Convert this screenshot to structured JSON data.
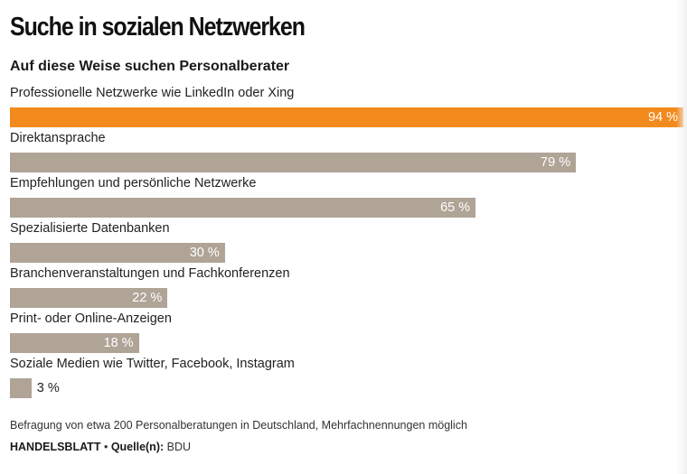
{
  "header": {
    "title": "Suche in sozialen Netzwerken",
    "subtitle": "Auf diese Weise suchen Personalberater"
  },
  "chart_data": {
    "type": "bar",
    "orientation": "horizontal",
    "title": "Suche in sozialen Netzwerken",
    "subtitle": "Auf diese Weise suchen Personalberater",
    "categories": [
      "Professionelle Netzwerke wie LinkedIn oder Xing",
      "Direktansprache",
      "Empfehlungen und persönliche Netzwerke",
      "Spezialisierte Datenbanken",
      "Branchenveranstaltungen und Fachkonferenzen",
      "Print- oder Online-Anzeigen",
      "Soziale Medien wie Twitter, Facebook, Instagram"
    ],
    "values": [
      94,
      79,
      65,
      30,
      22,
      18,
      3
    ],
    "value_labels": [
      "94 %",
      "79 %",
      "65 %",
      "30 %",
      "22 %",
      "18 %",
      "3 %"
    ],
    "unit": "%",
    "colors": {
      "highlight": "#f28a1d",
      "default": "#b0a497"
    },
    "highlight_index": 0,
    "xlim": [
      0,
      94
    ]
  },
  "footer": {
    "note": "Befragung von etwa 200 Personalberatungen in Deutschland, Mehrfachnennungen möglich",
    "publisher": "HANDELSBLATT",
    "separator": "•",
    "source_label": "Quelle(n):",
    "source_value": "BDU"
  }
}
